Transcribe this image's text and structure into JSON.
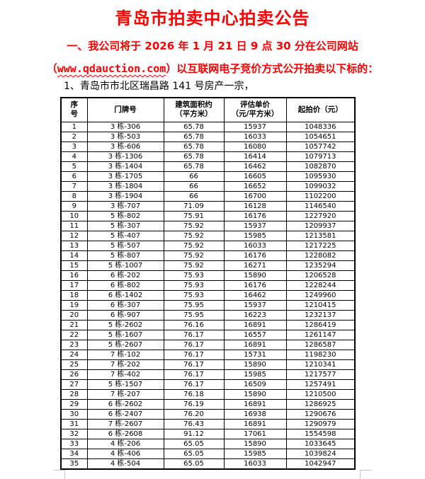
{
  "doc": {
    "title": "青岛市拍卖中心拍卖公告",
    "intro_line1": "一、我公司将于 2026 年 1 月 21 日 9 点 30 分在公司网站",
    "intro_line2_prefix": "（",
    "website_url": "www.qdauction.com",
    "intro_line2_suffix": "）以互联网电子竞价方式公开拍卖以下标的：",
    "lot_line": "1、青岛市市北区瑞昌路 141 号房产一宗，"
  },
  "colors": {
    "accent_red": "#ff0000",
    "table_border": "#000000",
    "margin_mark_gray": "#c4c4c4"
  },
  "table": {
    "headers": {
      "col1_line1": "序",
      "col1_line2": "号",
      "col2": "门牌号",
      "col3_line1": "建筑面积约",
      "col3_line2": "（平方米）",
      "col4_line1": "评估单价",
      "col4_line2": "（元/平方米）",
      "col5": "起拍价（元）"
    },
    "rows": [
      [
        "1",
        "3 栋-306",
        "65.78",
        "15937",
        "1048336"
      ],
      [
        "2",
        "3 栋-503",
        "65.78",
        "16033",
        "1054651"
      ],
      [
        "3",
        "3 栋-606",
        "65.78",
        "16080",
        "1057742"
      ],
      [
        "4",
        "3 栋-1306",
        "65.78",
        "16414",
        "1079713"
      ],
      [
        "5",
        "3 栋-1404",
        "65.78",
        "16462",
        "1082870"
      ],
      [
        "6",
        "3 栋-1705",
        "66",
        "16605",
        "1095930"
      ],
      [
        "7",
        "3 栋-1804",
        "66",
        "16652",
        "1099032"
      ],
      [
        "8",
        "3 栋-1904",
        "66",
        "16700",
        "1102200"
      ],
      [
        "9",
        "3 栋-707",
        "71.09",
        "16128",
        "1146540"
      ],
      [
        "10",
        "5 栋-802",
        "75.91",
        "16176",
        "1227920"
      ],
      [
        "11",
        "5 栋-307",
        "75.92",
        "15937",
        "1209937"
      ],
      [
        "12",
        "5 栋-407",
        "75.92",
        "15985",
        "1213581"
      ],
      [
        "13",
        "5 栋-507",
        "75.92",
        "16033",
        "1217225"
      ],
      [
        "14",
        "5 栋-807",
        "75.92",
        "16176",
        "1228082"
      ],
      [
        "15",
        "5 栋-1007",
        "75.92",
        "16271",
        "1235294"
      ],
      [
        "16",
        "6 栋-202",
        "75.93",
        "15890",
        "1206528"
      ],
      [
        "17",
        "6 栋-802",
        "75.93",
        "16176",
        "1228244"
      ],
      [
        "18",
        "6 栋-1402",
        "75.93",
        "16462",
        "1249960"
      ],
      [
        "19",
        "6 栋-307",
        "75.95",
        "15937",
        "1210415"
      ],
      [
        "20",
        "6 栋-907",
        "75.95",
        "16223",
        "1232137"
      ],
      [
        "21",
        "5 栋-2602",
        "76.16",
        "16891",
        "1286419"
      ],
      [
        "22",
        "5 栋-1607",
        "76.17",
        "16557",
        "1261147"
      ],
      [
        "23",
        "5 栋-2607",
        "76.17",
        "16891",
        "1286587"
      ],
      [
        "24",
        "7 栋-102",
        "76.17",
        "15731",
        "1198230"
      ],
      [
        "25",
        "7 栋-202",
        "76.17",
        "15890",
        "1210341"
      ],
      [
        "26",
        "7 栋-402",
        "76.17",
        "15985",
        "1217577"
      ],
      [
        "27",
        "5 栋-1507",
        "76.17",
        "16509",
        "1257491"
      ],
      [
        "28",
        "7 栋-207",
        "76.18",
        "15890",
        "1210500"
      ],
      [
        "29",
        "6 栋-2602",
        "76.19",
        "16891",
        "1286925"
      ],
      [
        "30",
        "6 栋-2407",
        "76.20",
        "16938",
        "1290676"
      ],
      [
        "31",
        "7 栋-2607",
        "76.43",
        "16891",
        "1290979"
      ],
      [
        "32",
        "6 栋-2608",
        "91.12",
        "17061",
        "1554598"
      ],
      [
        "33",
        "4 栋-206",
        "65.05",
        "15890",
        "1033645"
      ],
      [
        "34",
        "4 栋-406",
        "65.05",
        "15985",
        "1039824"
      ],
      [
        "35",
        "4 栋-504",
        "65.05",
        "16033",
        "1042947"
      ]
    ]
  }
}
